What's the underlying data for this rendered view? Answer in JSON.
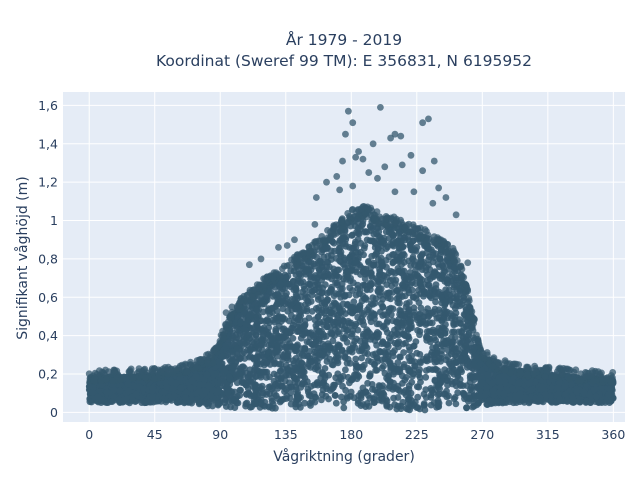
{
  "chart_data": {
    "type": "scatter",
    "title": "År 1979 - 2019",
    "subtitle": "Koordinat (Sweref 99 TM): E 356831, N 6195952",
    "xlabel": "Vågriktning (grader)",
    "ylabel": "Signifikant våghöjd (m)",
    "xlim": [
      -18,
      368
    ],
    "ylim": [
      -0.05,
      1.67
    ],
    "x_ticks": [
      0,
      45,
      90,
      135,
      180,
      225,
      270,
      315,
      360
    ],
    "x_tick_labels": [
      "0",
      "45",
      "90",
      "135",
      "180",
      "225",
      "270",
      "315",
      "360"
    ],
    "y_ticks": [
      0,
      0.2,
      0.4,
      0.6,
      0.8,
      1.0,
      1.2,
      1.4,
      1.6
    ],
    "y_tick_labels": [
      "0",
      "0,2",
      "0,4",
      "0,6",
      "0,8",
      "1",
      "1,2",
      "1,4",
      "1,6"
    ],
    "grid": true,
    "colors": {
      "marker": "#34586e",
      "plot_background": "#e5ecf6",
      "grid": "#ffffff",
      "text": "#2a3f5f"
    },
    "envelope": {
      "direction_deg": [
        0,
        30,
        60,
        75,
        85,
        90,
        100,
        110,
        120,
        130,
        140,
        150,
        160,
        170,
        180,
        190,
        200,
        210,
        220,
        230,
        240,
        250,
        255,
        260,
        265,
        270,
        280,
        300,
        330,
        360
      ],
      "lower_hs_m": [
        0.05,
        0.05,
        0.05,
        0.04,
        0.03,
        0.03,
        0.02,
        0.02,
        0.02,
        0.02,
        0.02,
        0.02,
        0.02,
        0.02,
        0.02,
        0.02,
        0.02,
        0.01,
        0.01,
        0.01,
        0.02,
        0.02,
        0.02,
        0.02,
        0.03,
        0.04,
        0.04,
        0.05,
        0.05,
        0.05
      ],
      "upper_hs_m": [
        0.18,
        0.19,
        0.2,
        0.24,
        0.28,
        0.36,
        0.53,
        0.6,
        0.66,
        0.71,
        0.77,
        0.82,
        0.89,
        0.95,
        1.02,
        1.04,
        1.0,
        0.98,
        0.95,
        0.92,
        0.88,
        0.82,
        0.74,
        0.6,
        0.45,
        0.3,
        0.24,
        0.21,
        0.19,
        0.17
      ]
    },
    "outliers": [
      {
        "x": 200,
        "y": 1.59
      },
      {
        "x": 178,
        "y": 1.57
      },
      {
        "x": 233,
        "y": 1.53
      },
      {
        "x": 229,
        "y": 1.51
      },
      {
        "x": 181,
        "y": 1.51
      },
      {
        "x": 210,
        "y": 1.45
      },
      {
        "x": 207,
        "y": 1.43
      },
      {
        "x": 214,
        "y": 1.44
      },
      {
        "x": 176,
        "y": 1.45
      },
      {
        "x": 195,
        "y": 1.4
      },
      {
        "x": 185,
        "y": 1.36
      },
      {
        "x": 183,
        "y": 1.33
      },
      {
        "x": 188,
        "y": 1.32
      },
      {
        "x": 174,
        "y": 1.31
      },
      {
        "x": 221,
        "y": 1.34
      },
      {
        "x": 237,
        "y": 1.31
      },
      {
        "x": 215,
        "y": 1.29
      },
      {
        "x": 203,
        "y": 1.28
      },
      {
        "x": 229,
        "y": 1.26
      },
      {
        "x": 192,
        "y": 1.25
      },
      {
        "x": 170,
        "y": 1.23
      },
      {
        "x": 163,
        "y": 1.2
      },
      {
        "x": 198,
        "y": 1.22
      },
      {
        "x": 240,
        "y": 1.17
      },
      {
        "x": 172,
        "y": 1.16
      },
      {
        "x": 210,
        "y": 1.15
      },
      {
        "x": 223,
        "y": 1.15
      },
      {
        "x": 181,
        "y": 1.18
      },
      {
        "x": 245,
        "y": 1.12
      },
      {
        "x": 156,
        "y": 1.12
      },
      {
        "x": 236,
        "y": 1.09
      },
      {
        "x": 252,
        "y": 1.03
      },
      {
        "x": 130,
        "y": 0.86
      },
      {
        "x": 136,
        "y": 0.87
      },
      {
        "x": 141,
        "y": 0.9
      },
      {
        "x": 118,
        "y": 0.8
      },
      {
        "x": 110,
        "y": 0.77
      },
      {
        "x": 155,
        "y": 0.98
      },
      {
        "x": 260,
        "y": 0.78
      },
      {
        "x": 104,
        "y": 0.58
      },
      {
        "x": 98,
        "y": 0.55
      },
      {
        "x": 94,
        "y": 0.52
      }
    ]
  }
}
